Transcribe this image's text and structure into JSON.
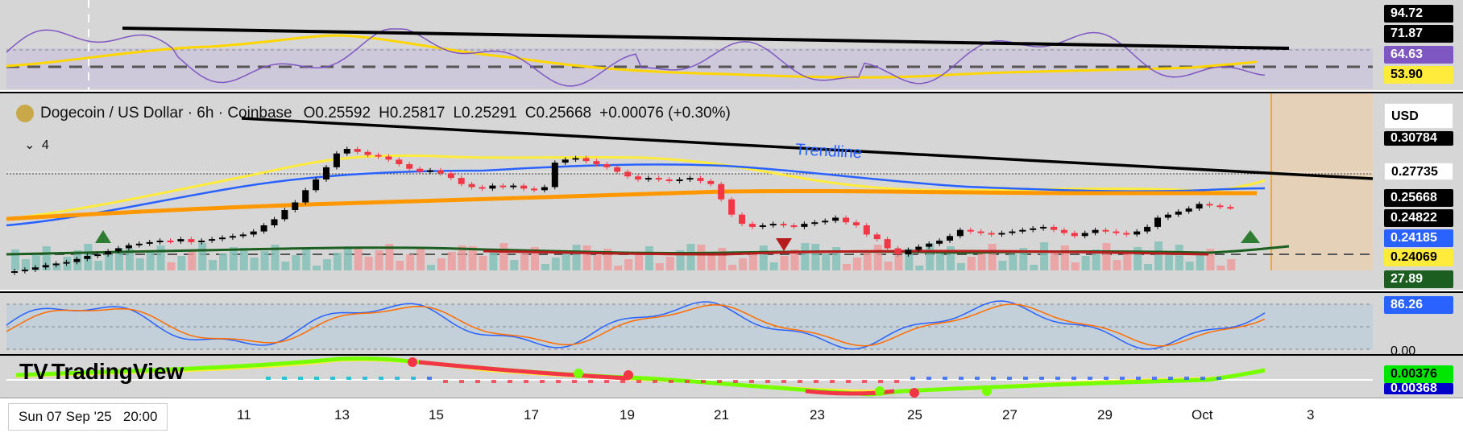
{
  "header": {
    "symbol_title": "Dogecoin / US Dollar · 6h · Coinbase",
    "open": "O0.25592",
    "high": "H0.25817",
    "low": "L0.25291",
    "close": "C0.25668",
    "change": "+0.00076 (+0.30%)",
    "indicator_toggle": "4",
    "currency_button": "USD"
  },
  "annotations": {
    "trendline_label": "Trendline"
  },
  "rsi_pane": {
    "labels": [
      "94.72",
      "71.87",
      "64.63",
      "53.90"
    ]
  },
  "price_pane": {
    "labels": [
      "0.30784",
      "0.27735",
      "0.25668",
      "0.24822",
      "0.24185",
      "0.24069",
      "27.89"
    ]
  },
  "stoch_pane": {
    "labels": [
      "86.26",
      "0.00"
    ]
  },
  "macd_pane": {
    "labels": [
      "0.00376",
      "0.00368"
    ]
  },
  "time_axis": {
    "cursor_label": "Sun 07 Sep '25   20:00",
    "ticks": [
      "11",
      "13",
      "15",
      "17",
      "19",
      "21",
      "23",
      "25",
      "27",
      "29",
      "Oct",
      "3"
    ]
  },
  "branding": {
    "logo_text": "TradingView"
  },
  "colors": {
    "bull": "#000000",
    "bear": "#f23645",
    "ema_fast": "#ffeb3b",
    "ema_mid": "#2962ff",
    "ema_slow": "#ff9800",
    "trendline": "#000000",
    "pane_bg": "#d6d6d6"
  }
}
